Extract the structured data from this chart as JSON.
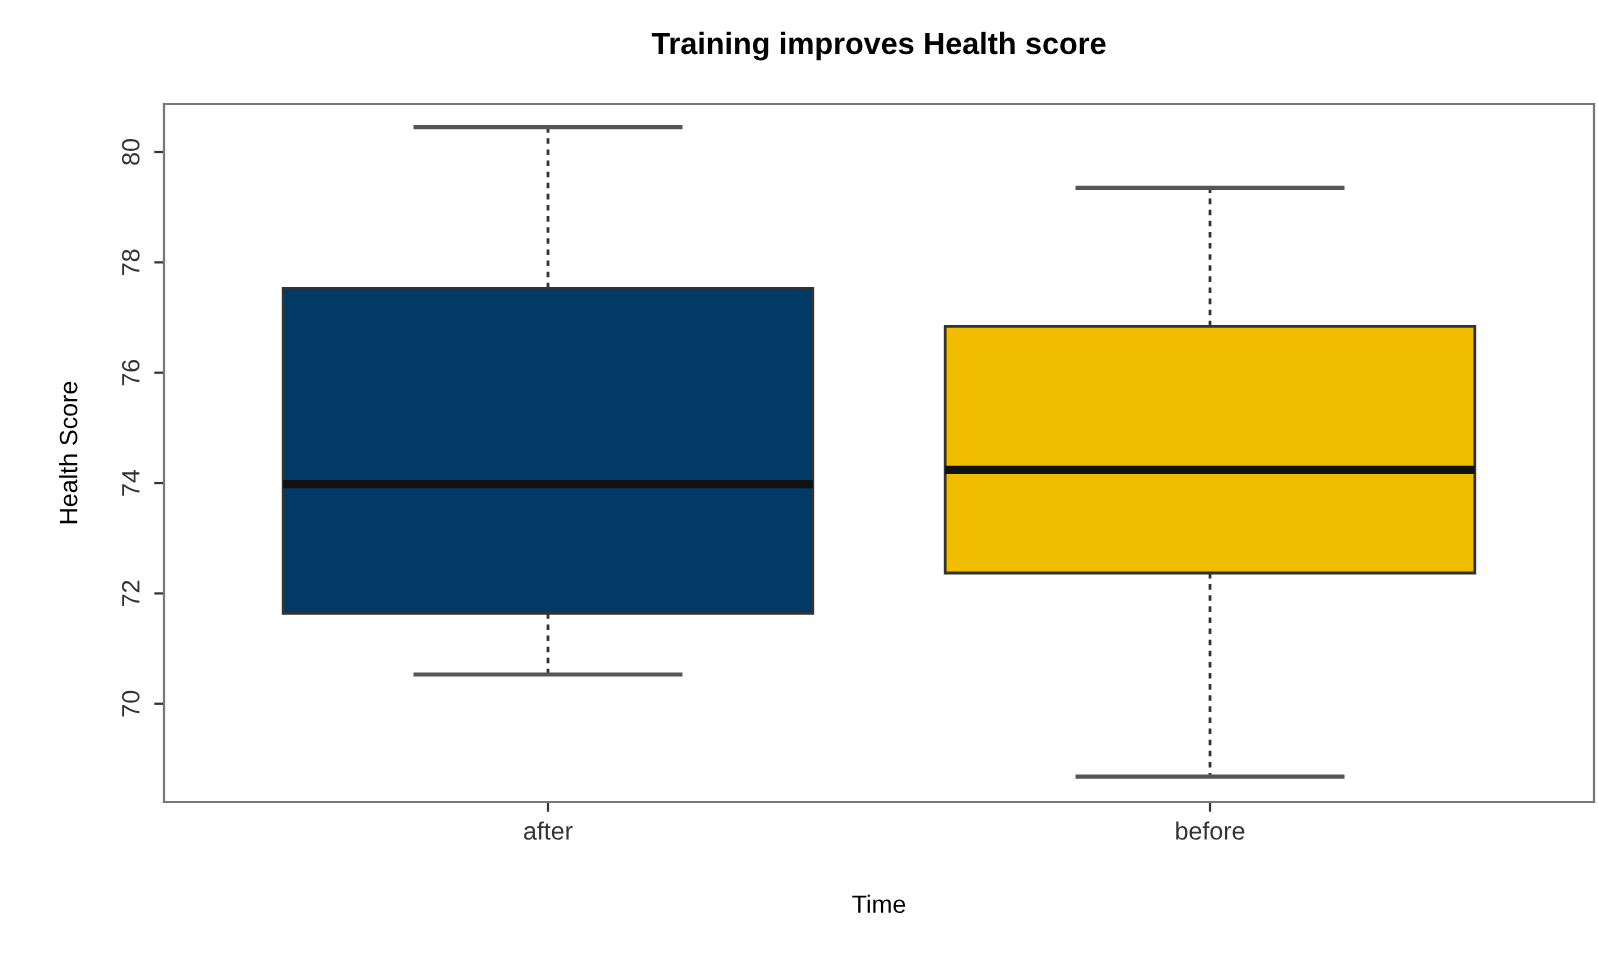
{
  "chart_data": {
    "type": "box",
    "title": "Training improves Health score",
    "xlabel": "Time",
    "ylabel": "Health Score",
    "categories": [
      "after",
      "before"
    ],
    "colors": [
      "#023a66",
      "#f0bd00"
    ],
    "boxes": [
      {
        "low": 70.53,
        "q1": 71.64,
        "median": 73.98,
        "q3": 77.53,
        "high": 80.45
      },
      {
        "low": 68.68,
        "q1": 72.37,
        "median": 74.24,
        "q3": 76.84,
        "high": 79.35
      }
    ],
    "ylim": [
      68.22,
      80.87
    ],
    "yticks": [
      70,
      72,
      74,
      76,
      78,
      80
    ],
    "grid": false,
    "legend": false
  }
}
